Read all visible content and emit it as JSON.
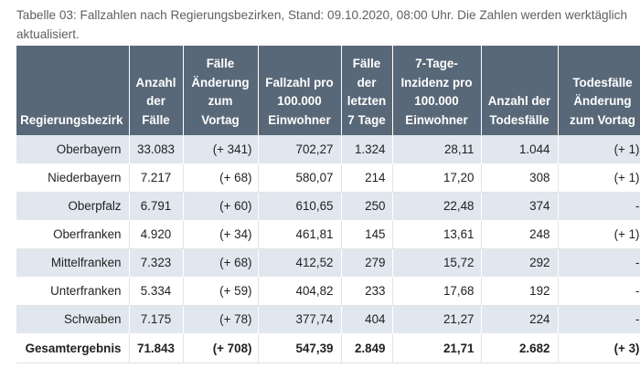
{
  "caption": "Tabelle 03: Fallzahlen nach Regierungsbezirken, Stand: 09.10.2020, 08:00 Uhr. Die Zahlen werden werktäglich aktualisiert.",
  "table": {
    "headers": [
      "Regierungsbezirk",
      "Anzahl der Fälle",
      "Fälle Änderung zum Vortag",
      "Fallzahl pro 100.000 Einwohner",
      "Fälle der letzten 7 Tage",
      "7-Tage-Inzidenz pro 100.000 Einwohner",
      "Anzahl der Todesfälle",
      "Todesfälle Änderung zum Vortag"
    ],
    "rows": [
      [
        "Oberbayern",
        "33.083",
        "(+ 341)",
        "702,27",
        "1.324",
        "28,11",
        "1.044",
        "(+ 1)"
      ],
      [
        "Niederbayern",
        "7.217",
        "(+ 68)",
        "580,07",
        "214",
        "17,20",
        "308",
        "(+ 1)"
      ],
      [
        "Oberpfalz",
        "6.791",
        "(+ 60)",
        "610,65",
        "250",
        "22,48",
        "374",
        "-"
      ],
      [
        "Oberfranken",
        "4.920",
        "(+ 34)",
        "461,81",
        "145",
        "13,61",
        "248",
        "(+ 1)"
      ],
      [
        "Mittelfranken",
        "7.323",
        "(+ 68)",
        "412,52",
        "279",
        "15,72",
        "292",
        "-"
      ],
      [
        "Unterfranken",
        "5.334",
        "(+ 59)",
        "404,82",
        "233",
        "17,68",
        "192",
        "-"
      ],
      [
        "Schwaben",
        "7.175",
        "(+ 78)",
        "377,74",
        "404",
        "21,27",
        "224",
        "-"
      ]
    ],
    "total": [
      "Gesamtergebnis",
      "71.843",
      "(+ 708)",
      "547,39",
      "2.849",
      "21,71",
      "2.682",
      "(+ 3)"
    ]
  },
  "colors": {
    "header_bg": "#596878",
    "stripe_bg": "#e0e7ee",
    "caption_text": "#5f5f5f"
  }
}
